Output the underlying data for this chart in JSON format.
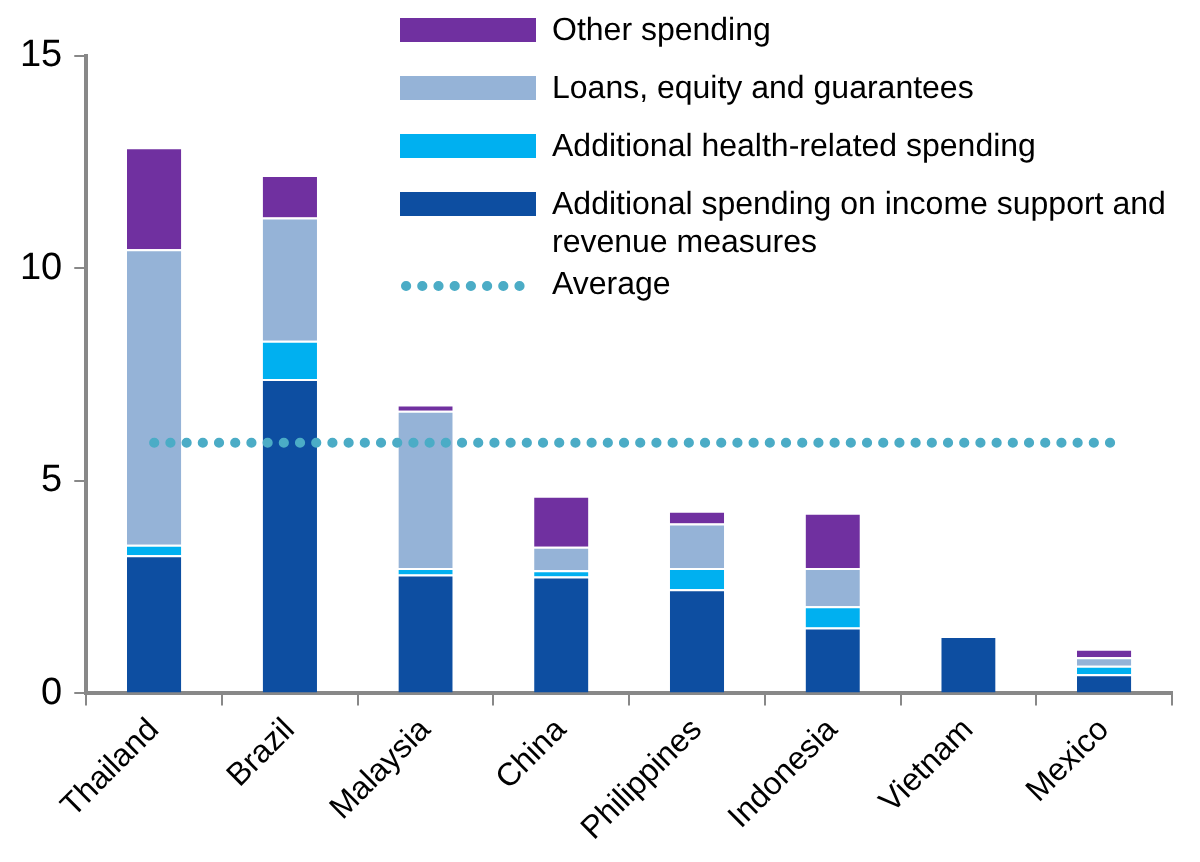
{
  "chart_data": {
    "type": "bar",
    "stacked": true,
    "categories": [
      "Thailand",
      "Brazil",
      "Malaysia",
      "China",
      "Philippines",
      "Indonesia",
      "Vietnam",
      "Mexico"
    ],
    "series": [
      {
        "name": "Additional spending on income support and revenue measures",
        "color": "#0d4ea1",
        "values": [
          3.25,
          7.4,
          2.8,
          2.75,
          2.45,
          1.55,
          1.35,
          0.45
        ]
      },
      {
        "name": "Additional health-related spending",
        "color": "#00b0f0",
        "values": [
          0.25,
          0.9,
          0.15,
          0.15,
          0.5,
          0.5,
          0,
          0.2
        ]
      },
      {
        "name": "Loans, equity and guarantees",
        "color": "#95b3d7",
        "values": [
          6.95,
          2.9,
          3.7,
          0.55,
          1.05,
          0.9,
          0,
          0.2
        ]
      },
      {
        "name": "Other spending",
        "color": "#7030a0",
        "values": [
          2.4,
          1.0,
          0.15,
          1.2,
          0.3,
          1.3,
          0,
          0.2
        ]
      }
    ],
    "ylim": [
      0,
      15
    ],
    "yticks": [
      0,
      5,
      10,
      15
    ],
    "grid": false,
    "legend": "top right",
    "ref_lines": [
      {
        "axis": "y",
        "value": 5.9,
        "label": "Average",
        "color": "#4bacc6",
        "line_style": "dotted"
      }
    ]
  }
}
